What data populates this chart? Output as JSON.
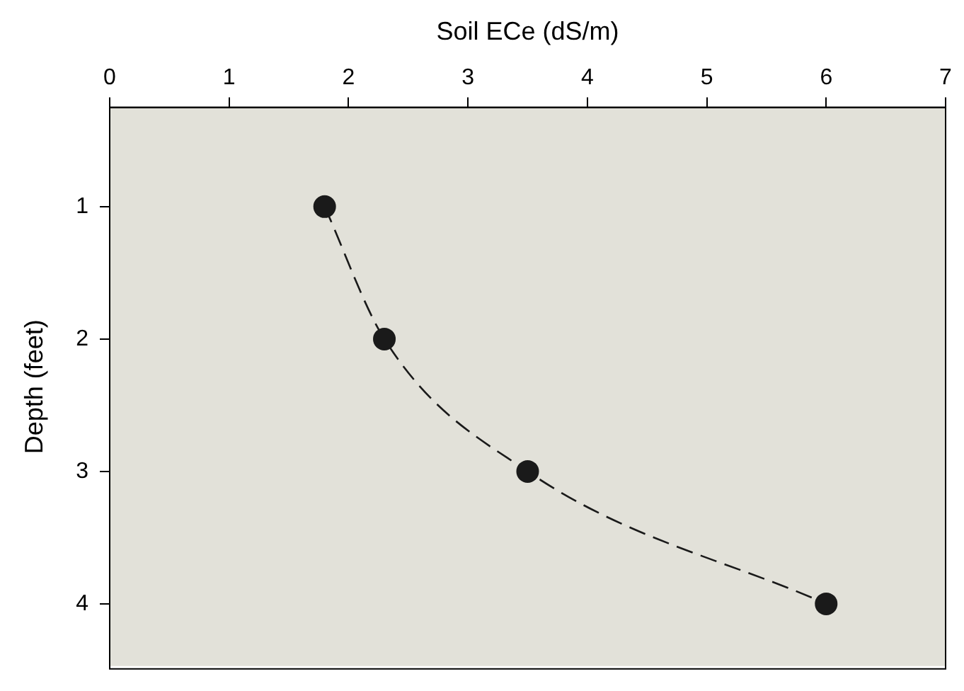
{
  "chart_data": {
    "type": "line",
    "xlabel": "Soil ECe (dS/m)",
    "ylabel": "Depth (feet)",
    "x": [
      1.8,
      2.3,
      3.5,
      6
    ],
    "series": [
      {
        "color": "#1a1a1a",
        "values": [
          1,
          2,
          3,
          4
        ]
      }
    ],
    "xlim": [
      0,
      7
    ],
    "xticks": [
      0,
      1,
      2,
      3,
      4,
      5,
      6,
      7
    ],
    "ylim": [
      4.47,
      0.25
    ],
    "yticks": [
      1,
      2,
      3,
      4
    ],
    "grid": false,
    "legend": false,
    "marker": "circle",
    "line_style": "dashed"
  }
}
